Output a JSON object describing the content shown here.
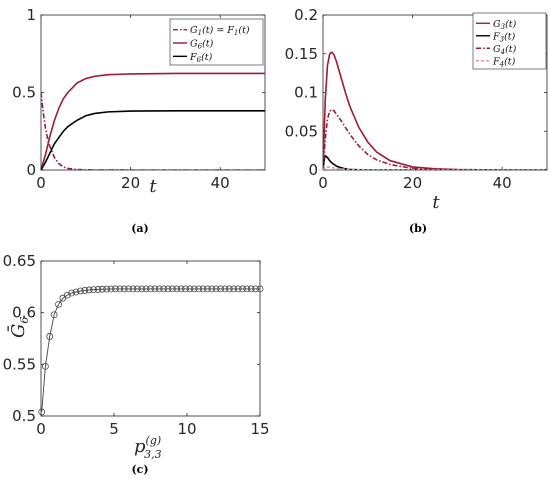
{
  "colors": {
    "red": "#9e1b32",
    "black": "#000000",
    "marker": "#444444"
  },
  "chart_data": [
    {
      "type": "line",
      "panel": "(a)",
      "xlabel": "t",
      "xlim": [
        0,
        50
      ],
      "ylim": [
        0,
        1
      ],
      "xticks": [
        "0",
        "20",
        "40"
      ],
      "yticks": [
        "0",
        "0.5",
        "1"
      ],
      "legend_position": "top-right",
      "series": [
        {
          "name": "G1(t) = F1(t)",
          "label_html": "G<tspan font-size='7' dy='2'>1</tspan><tspan dy='-2'>(t) = F</tspan><tspan font-size='7' dy='2'>1</tspan><tspan dy='-2'>(t)</tspan>",
          "color": "#9e1b32",
          "dash": "dashdot",
          "x": [
            0,
            0.5,
            1,
            1.5,
            2,
            3,
            4,
            5,
            6,
            8,
            10,
            20,
            30,
            40,
            50
          ],
          "y": [
            0.5,
            0.37,
            0.27,
            0.2,
            0.15,
            0.08,
            0.04,
            0.02,
            0.01,
            0.003,
            0.001,
            0,
            0,
            0,
            0
          ]
        },
        {
          "name": "G6(t)",
          "label_html": "G<tspan font-size='7' dy='2'>6</tspan><tspan dy='-2'>(t)</tspan>",
          "color": "#9e1b32",
          "dash": "solid",
          "x": [
            0,
            1,
            2,
            3,
            4,
            5,
            6,
            8,
            10,
            12,
            15,
            20,
            30,
            40,
            50
          ],
          "y": [
            0,
            0.1,
            0.22,
            0.32,
            0.4,
            0.46,
            0.5,
            0.56,
            0.59,
            0.605,
            0.615,
            0.62,
            0.623,
            0.623,
            0.623
          ]
        },
        {
          "name": "F6(t)",
          "label_html": "F<tspan font-size='7' dy='2'>6</tspan><tspan dy='-2'>(t)</tspan>",
          "color": "#000000",
          "dash": "solid",
          "x": [
            0,
            1,
            2,
            3,
            4,
            5,
            6,
            8,
            10,
            12,
            15,
            20,
            30,
            40,
            50
          ],
          "y": [
            0,
            0.05,
            0.11,
            0.17,
            0.21,
            0.25,
            0.28,
            0.32,
            0.35,
            0.365,
            0.375,
            0.38,
            0.382,
            0.382,
            0.382
          ]
        }
      ]
    },
    {
      "type": "line",
      "panel": "(b)",
      "xlabel": "t",
      "xlim": [
        0,
        50
      ],
      "ylim": [
        0,
        0.2
      ],
      "xticks": [
        "0",
        "20",
        "40"
      ],
      "yticks": [
        "0",
        "0.05",
        "0.1",
        "0.15",
        "0.2"
      ],
      "legend_position": "top-right",
      "series": [
        {
          "name": "G3(t)",
          "label_html": "G<tspan font-size='7' dy='2'>3</tspan><tspan dy='-2'>(t)</tspan>",
          "color": "#9e1b32",
          "dash": "solid",
          "x": [
            0,
            0.5,
            1,
            1.5,
            2,
            2.5,
            3,
            4,
            5,
            6,
            8,
            10,
            12,
            15,
            20,
            25,
            30,
            40,
            50
          ],
          "y": [
            0,
            0.09,
            0.135,
            0.15,
            0.152,
            0.148,
            0.14,
            0.12,
            0.1,
            0.082,
            0.055,
            0.036,
            0.023,
            0.012,
            0.004,
            0.0015,
            0.0005,
            0,
            0
          ]
        },
        {
          "name": "F3(t)",
          "label_html": "F<tspan font-size='7' dy='2'>3</tspan><tspan dy='-2'>(t)</tspan>",
          "color": "#000000",
          "dash": "solid",
          "x": [
            0,
            0.3,
            0.6,
            1,
            1.5,
            2,
            3,
            4,
            5,
            6,
            8,
            10,
            20,
            50
          ],
          "y": [
            0,
            0.015,
            0.018,
            0.016,
            0.012,
            0.009,
            0.005,
            0.003,
            0.0015,
            0.0008,
            0.0002,
            0,
            0,
            0
          ]
        },
        {
          "name": "G4(t)",
          "label_html": "G<tspan font-size='7' dy='2'>4</tspan><tspan dy='-2'>(t)</tspan>",
          "color": "#9e1b32",
          "dash": "dashdot",
          "x": [
            0,
            0.5,
            1,
            1.5,
            2,
            2.5,
            3,
            4,
            5,
            6,
            8,
            10,
            12,
            15,
            20,
            25,
            30,
            40,
            50
          ],
          "y": [
            0,
            0.04,
            0.066,
            0.076,
            0.078,
            0.076,
            0.072,
            0.064,
            0.055,
            0.046,
            0.031,
            0.02,
            0.013,
            0.007,
            0.002,
            0.0007,
            0.0002,
            0,
            0
          ]
        },
        {
          "name": "F4(t)",
          "label_html": "F<tspan font-size='7' dy='2'>4</tspan><tspan dy='-2'>(t)</tspan>",
          "color": "#d0a0a8",
          "dash": "dashed",
          "x": [
            0,
            0.5,
            1,
            2,
            3,
            5,
            10,
            50
          ],
          "y": [
            0,
            0.003,
            0.004,
            0.003,
            0.002,
            0.001,
            0,
            0
          ]
        }
      ]
    },
    {
      "type": "line",
      "panel": "(c)",
      "xlabel_html": "p<tspan font-size='11' dy='-8'>(g)</tspan><tspan font-size='11' dx='-17' dy='14'>3,3</tspan>",
      "ylabel_html": "Ḡ<tspan font-size='11' dy='4'>6</tspan>",
      "xlim": [
        0,
        15
      ],
      "ylim": [
        0.5,
        0.65
      ],
      "xticks": [
        "0",
        "5",
        "10",
        "15"
      ],
      "yticks": [
        "0.5",
        "0.55",
        "0.6",
        "0.65"
      ],
      "series": [
        {
          "name": "",
          "color": "#444444",
          "marker": "circle",
          "x": [
            0.05,
            0.3,
            0.6,
            0.9,
            1.2,
            1.5,
            1.8,
            2.1,
            2.4,
            2.7,
            3.0,
            3.3,
            3.6,
            3.9,
            4.2,
            4.5,
            4.8,
            5.1,
            5.4,
            5.7,
            6.0,
            6.3,
            6.6,
            6.9,
            7.2,
            7.5,
            7.8,
            8.1,
            8.4,
            8.7,
            9.0,
            9.3,
            9.6,
            9.9,
            10.2,
            10.5,
            10.8,
            11.1,
            11.4,
            11.7,
            12.0,
            12.3,
            12.6,
            12.9,
            13.2,
            13.5,
            13.8,
            14.1,
            14.4,
            14.7,
            15.0
          ],
          "y": [
            0.504,
            0.548,
            0.577,
            0.598,
            0.608,
            0.614,
            0.617,
            0.619,
            0.62,
            0.621,
            0.6215,
            0.622,
            0.6223,
            0.6225,
            0.6227,
            0.6228,
            0.6229,
            0.623,
            0.623,
            0.623,
            0.623,
            0.623,
            0.623,
            0.623,
            0.623,
            0.623,
            0.623,
            0.623,
            0.623,
            0.623,
            0.623,
            0.623,
            0.623,
            0.623,
            0.623,
            0.623,
            0.623,
            0.623,
            0.623,
            0.623,
            0.623,
            0.623,
            0.623,
            0.623,
            0.623,
            0.623,
            0.623,
            0.623,
            0.623,
            0.623,
            0.623
          ]
        }
      ]
    }
  ]
}
